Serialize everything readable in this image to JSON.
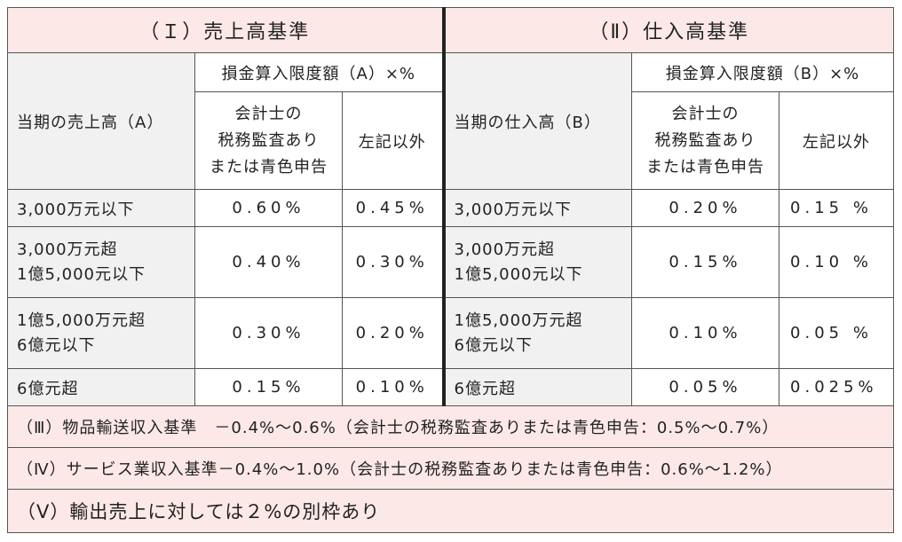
{
  "sections": {
    "sales_title": "（Ｉ）売上高基準",
    "purchase_title": "（Ⅱ）仕入高基準"
  },
  "sales": {
    "row_header": "当期の売上高（A）",
    "limit_header": "損金算入限度額（A）×%",
    "col_audit": [
      "会計士の",
      "税務監査あり",
      "または青色申告"
    ],
    "col_other": "左記以外",
    "rows": [
      {
        "label": [
          "3,000万元以下"
        ],
        "audit": "0.60%",
        "other": "0.45%"
      },
      {
        "label": [
          "3,000万元超",
          "1億5,000元以下"
        ],
        "audit": "0.40%",
        "other": "0.30%"
      },
      {
        "label": [
          "1億5,000万元超",
          "6億元以下"
        ],
        "audit": "0.30%",
        "other": "0.20%"
      },
      {
        "label": [
          "6億元超"
        ],
        "audit": "0.15%",
        "other": "0.10%"
      }
    ]
  },
  "purchase": {
    "row_header": "当期の仕入高（B）",
    "limit_header": "損金算入限度額（B）×%",
    "col_audit": [
      "会計士の",
      "税務監査あり",
      "または青色申告"
    ],
    "col_other": "左記以外",
    "rows": [
      {
        "label": [
          "3,000万元以下"
        ],
        "audit": "0.20%",
        "other": "0.15 %"
      },
      {
        "label": [
          "3,000万元超",
          "1億5,000元以下"
        ],
        "audit": "0.15%",
        "other": "0.10 %"
      },
      {
        "label": [
          "1億5,000万元超",
          "6億元以下"
        ],
        "audit": "0.10%",
        "other": "0.05 %"
      },
      {
        "label": [
          "6億元超"
        ],
        "audit": "0.05%",
        "other": "0.025%"
      }
    ]
  },
  "notes": [
    "（Ⅲ）物品輸送収入基準　－0.4%～0.6%（会計士の税務監査ありまたは青色申告：0.5%～0.7%）",
    "（Ⅳ）サービス業収入基準－0.4%～1.0%（会計士の税務監査ありまたは青色申告：0.6%～1.2%）",
    "（Ⅴ）輸出売上に対しては２%の別枠あり"
  ],
  "colors": {
    "header_bg": "#fde8e8",
    "label_bg": "#f1f1f1",
    "border": "#555555"
  }
}
